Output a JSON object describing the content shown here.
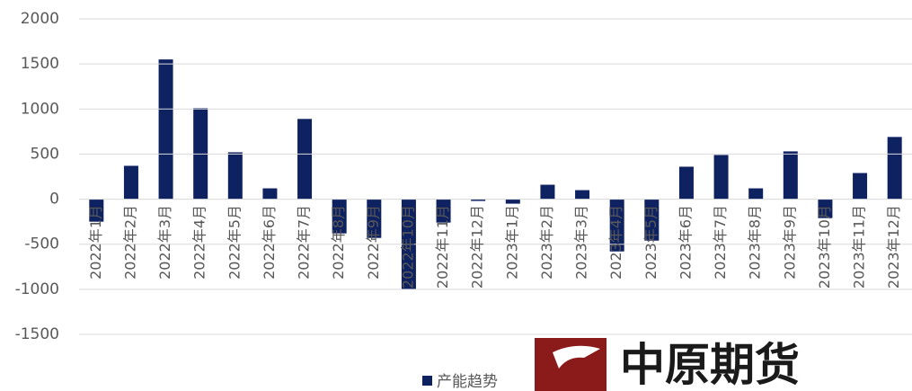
{
  "chart_data": {
    "type": "bar",
    "categories": [
      "2022年1月",
      "2022年2月",
      "2022年3月",
      "2022年4月",
      "2022年5月",
      "2022年6月",
      "2022年7月",
      "2022年8月",
      "2022年9月",
      "2022年10月",
      "2022年11月",
      "2022年12月",
      "2023年1月",
      "2023年2月",
      "2023年3月",
      "2023年4月",
      "2023年5月",
      "2023年6月",
      "2023年7月",
      "2023年8月",
      "2023年9月",
      "2023年10月",
      "2023年11月",
      "2023年12月"
    ],
    "series": [
      {
        "name": "产能趋势",
        "color": "#0e2160",
        "values": [
          -250,
          370,
          1550,
          1010,
          520,
          120,
          890,
          -380,
          -430,
          -1000,
          -260,
          -20,
          -50,
          160,
          100,
          -580,
          -460,
          360,
          490,
          120,
          530,
          -210,
          290,
          690
        ]
      }
    ],
    "ylim": [
      -1500,
      2000
    ],
    "yticks": [
      -1500,
      -1000,
      -500,
      0,
      500,
      1000,
      1500,
      2000
    ],
    "grid": true,
    "legend": "bottom",
    "watermark": "中原期货"
  }
}
